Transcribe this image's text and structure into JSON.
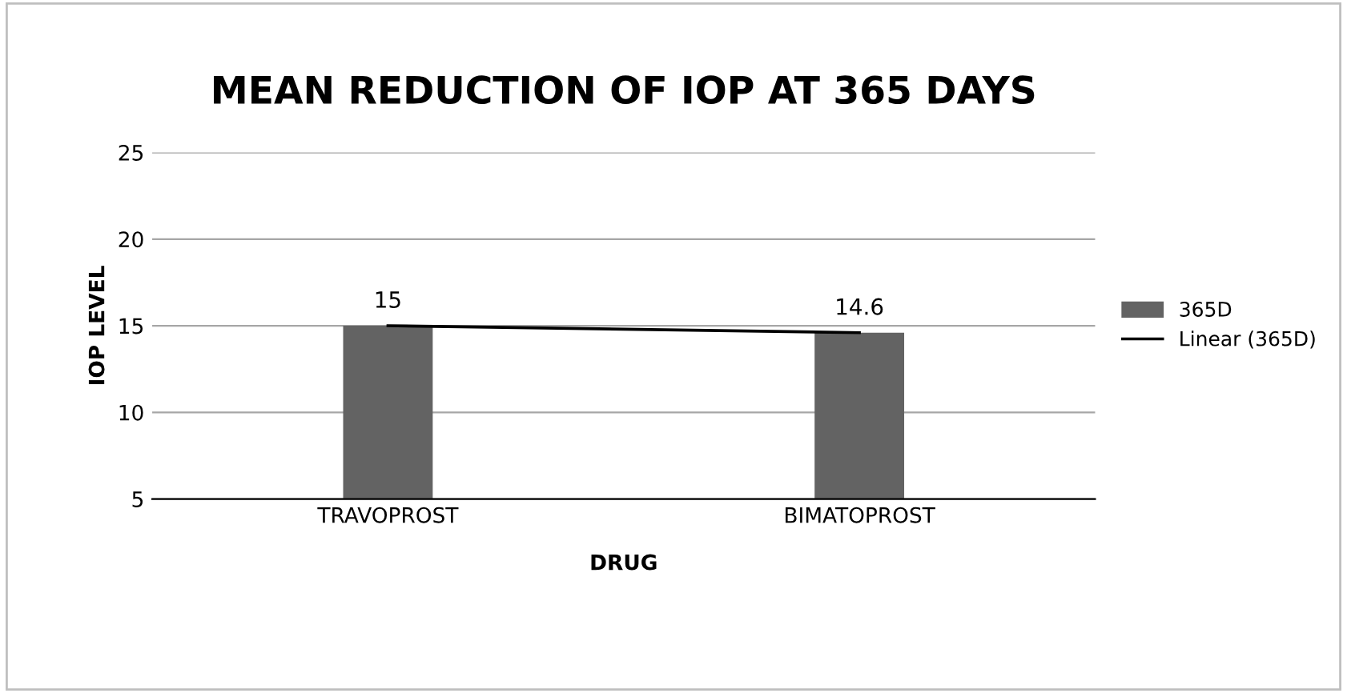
{
  "chart_data": {
    "type": "bar",
    "title": "MEAN REDUCTION OF IOP AT 365 DAYS",
    "xlabel": "DRUG",
    "ylabel": "IOP LEVEL",
    "categories": [
      "TRAVOPROST",
      "BIMATOPROST"
    ],
    "series": [
      {
        "name": "365D",
        "color": "#636363",
        "values": [
          15,
          14.6
        ],
        "value_labels": [
          "15",
          "14.6"
        ]
      },
      {
        "name": "Linear (365D)",
        "type": "line",
        "color": "#000000",
        "values": [
          15,
          14.6
        ]
      }
    ],
    "ylim": [
      5,
      25
    ],
    "yticks": [
      5,
      10,
      15,
      20,
      25
    ],
    "grid": "y",
    "legend": "right"
  }
}
